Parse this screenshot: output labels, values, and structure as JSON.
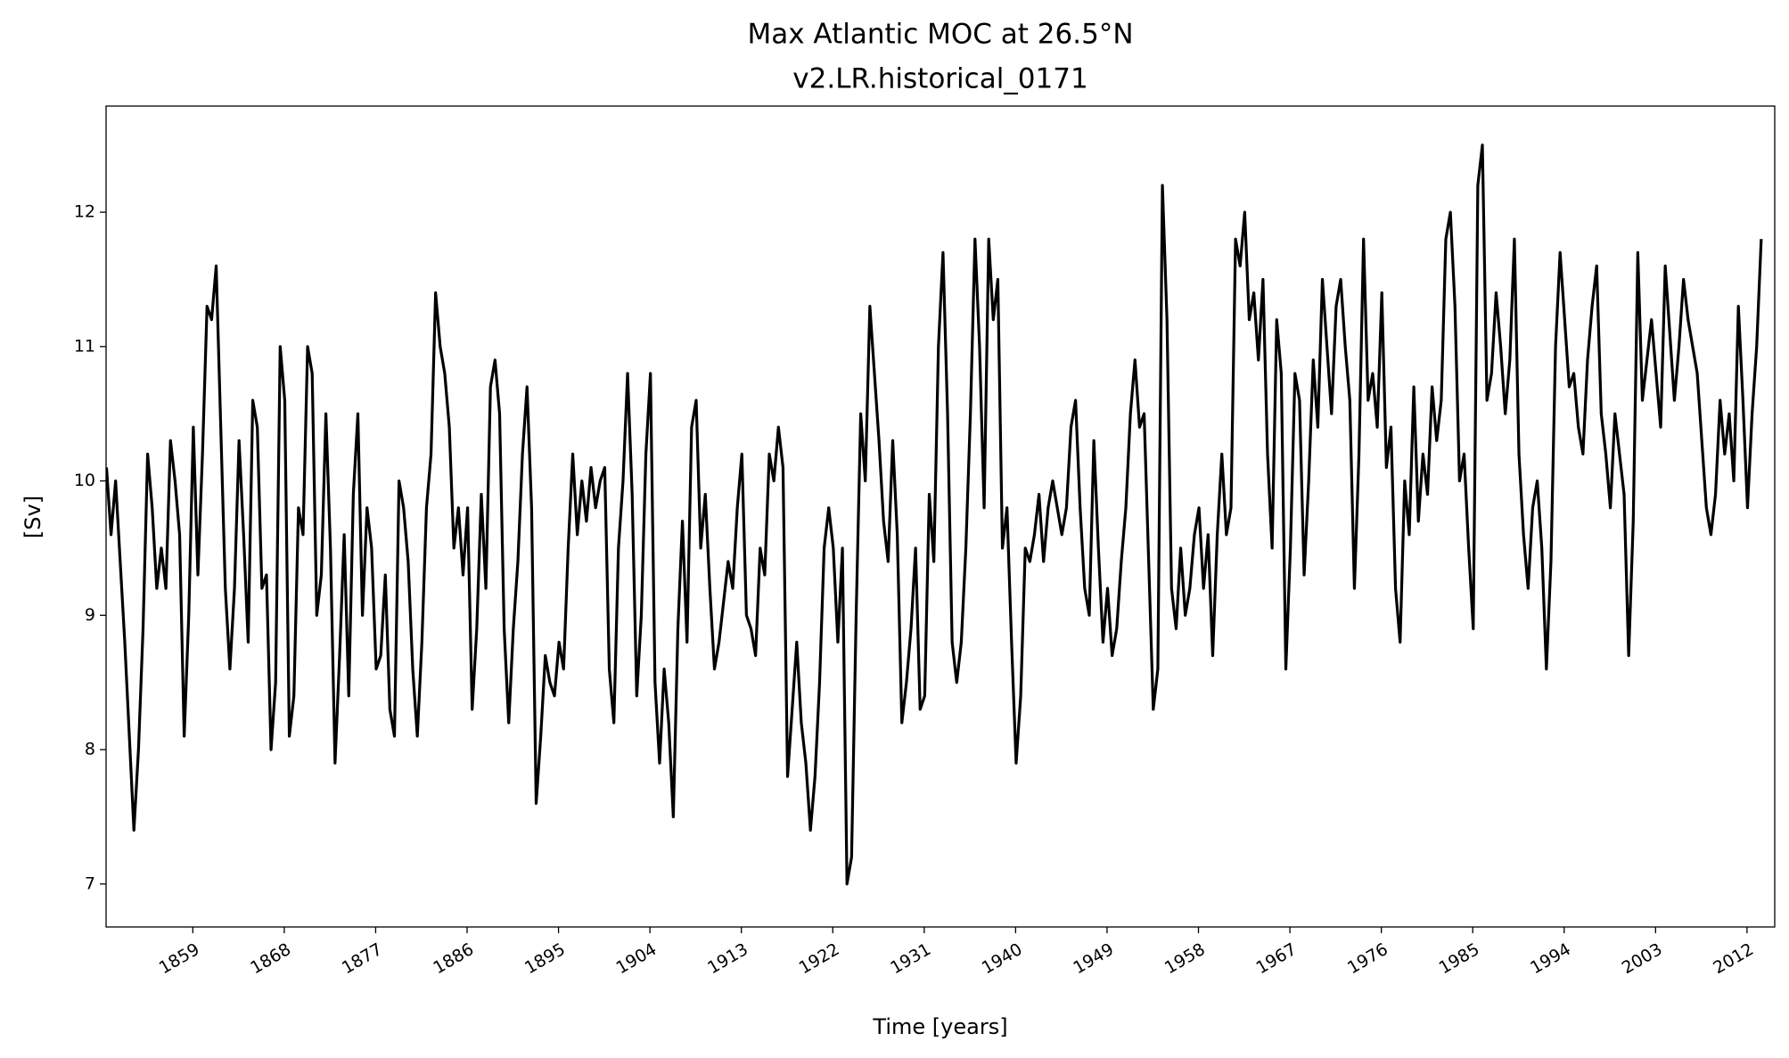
{
  "chart_data": {
    "type": "line",
    "title": "Max Atlantic MOC at 26.5°N",
    "subtitle": "v2.LR.historical_0171",
    "xlabel": "Time [years]",
    "ylabel": "[Sv]",
    "xlim": [
      1850.46,
      2014.73
    ],
    "ylim": [
      6.68,
      12.79
    ],
    "xticks": [
      1859,
      1868,
      1877,
      1886,
      1895,
      1904,
      1913,
      1922,
      1931,
      1940,
      1949,
      1958,
      1967,
      1976,
      1985,
      1994,
      2003,
      2012
    ],
    "yticks": [
      7,
      8,
      9,
      10,
      11,
      12
    ],
    "grid": false,
    "x": [
      1850.5,
      1850.95,
      1851.4,
      1851.85,
      1852.3,
      1852.75,
      1853.2,
      1853.65,
      1854.1,
      1854.55,
      1855,
      1855.45,
      1855.9,
      1856.35,
      1856.8,
      1857.25,
      1857.7,
      1858.15,
      1858.6,
      1859.05,
      1859.5,
      1859.95,
      1860.4,
      1860.85,
      1861.3,
      1861.75,
      1862.2,
      1862.65,
      1863.1,
      1863.55,
      1864,
      1864.45,
      1864.9,
      1865.35,
      1865.8,
      1866.25,
      1866.7,
      1867.15,
      1867.6,
      1868.05,
      1868.5,
      1868.95,
      1869.4,
      1869.85,
      1870.3,
      1870.75,
      1871.2,
      1871.65,
      1872.1,
      1872.55,
      1873,
      1873.45,
      1873.9,
      1874.35,
      1874.8,
      1875.25,
      1875.7,
      1876.15,
      1876.6,
      1877.05,
      1877.5,
      1877.95,
      1878.4,
      1878.85,
      1879.3,
      1879.75,
      1880.2,
      1880.65,
      1881.1,
      1881.55,
      1882,
      1882.45,
      1882.9,
      1883.35,
      1883.8,
      1884.25,
      1884.7,
      1885.15,
      1885.6,
      1886.05,
      1886.5,
      1886.95,
      1887.4,
      1887.85,
      1888.3,
      1888.75,
      1889.2,
      1889.65,
      1890.1,
      1890.55,
      1891,
      1891.45,
      1891.9,
      1892.35,
      1892.8,
      1893.25,
      1893.7,
      1894.15,
      1894.6,
      1895.05,
      1895.5,
      1895.95,
      1896.4,
      1896.85,
      1897.3,
      1897.75,
      1898.2,
      1898.65,
      1899.1,
      1899.55,
      1900,
      1900.45,
      1900.9,
      1901.35,
      1901.8,
      1902.25,
      1902.7,
      1903.15,
      1903.6,
      1904.05,
      1904.5,
      1904.95,
      1905.4,
      1905.85,
      1906.3,
      1906.75,
      1907.2,
      1907.65,
      1908.1,
      1908.55,
      1909,
      1909.45,
      1909.9,
      1910.35,
      1910.8,
      1911.25,
      1911.7,
      1912.15,
      1912.6,
      1913.05,
      1913.5,
      1913.95,
      1914.4,
      1914.85,
      1915.3,
      1915.75,
      1916.2,
      1916.65,
      1917.1,
      1917.55,
      1918,
      1918.45,
      1918.9,
      1919.35,
      1919.8,
      1920.25,
      1920.7,
      1921.15,
      1921.6,
      1922.05,
      1922.5,
      1922.95,
      1923.4,
      1923.85,
      1924.3,
      1924.75,
      1925.2,
      1925.65,
      1926.1,
      1926.55,
      1927,
      1927.45,
      1927.9,
      1928.35,
      1928.8,
      1929.25,
      1929.7,
      1930.15,
      1930.6,
      1931.05,
      1931.5,
      1931.95,
      1932.4,
      1932.85,
      1933.3,
      1933.75,
      1934.2,
      1934.65,
      1935.1,
      1935.55,
      1936,
      1936.45,
      1936.9,
      1937.35,
      1937.8,
      1938.25,
      1938.7,
      1939.15,
      1939.6,
      1940.05,
      1940.5,
      1940.95,
      1941.4,
      1941.85,
      1942.3,
      1942.75,
      1943.2,
      1943.65,
      1944.1,
      1944.55,
      1945,
      1945.45,
      1945.9,
      1946.35,
      1946.8,
      1947.25,
      1947.7,
      1948.15,
      1948.6,
      1949.05,
      1949.5,
      1949.95,
      1950.4,
      1950.85,
      1951.3,
      1951.75,
      1952.2,
      1952.65,
      1953.1,
      1953.55,
      1954,
      1954.45,
      1954.9,
      1955.35,
      1955.8,
      1956.25,
      1956.7,
      1957.15,
      1957.6,
      1958.05,
      1958.5,
      1958.95,
      1959.4,
      1959.85,
      1960.3,
      1960.75,
      1961.2,
      1961.65,
      1962.1,
      1962.55,
      1963,
      1963.45,
      1963.9,
      1964.35,
      1964.8,
      1965.25,
      1965.7,
      1966.15,
      1966.6,
      1967.05,
      1967.5,
      1967.95,
      1968.4,
      1968.85,
      1969.3,
      1969.75,
      1970.2,
      1970.65,
      1971.1,
      1971.55,
      1972,
      1972.45,
      1972.9,
      1973.35,
      1973.8,
      1974.25,
      1974.7,
      1975.15,
      1975.6,
      1976.05,
      1976.5,
      1976.95,
      1977.4,
      1977.85,
      1978.3,
      1978.75,
      1979.2,
      1979.65,
      1980.1,
      1980.55,
      1981,
      1981.45,
      1981.9,
      1982.35,
      1982.8,
      1983.25,
      1983.7,
      1984.15,
      1984.6,
      1985.05,
      1985.5,
      1985.95,
      1986.4,
      1986.85,
      1987.3,
      1987.75,
      1988.2,
      1988.65,
      1989.1,
      1989.55,
      1990,
      1990.45,
      1990.9,
      1991.35,
      1991.8,
      1992.25,
      1992.7,
      1993.15,
      1993.6,
      1994.05,
      1994.5,
      1994.95,
      1995.4,
      1995.85,
      1996.3,
      1996.75,
      1997.2,
      1997.65,
      1998.1,
      1998.55,
      1999,
      1999.45,
      1999.9,
      2000.35,
      2000.8,
      2001.25,
      2001.7,
      2002.15,
      2002.6,
      2003.05,
      2003.5,
      2003.95,
      2004.4,
      2004.85,
      2005.3,
      2005.75,
      2006.2,
      2006.65,
      2007.1,
      2007.55,
      2008,
      2008.45,
      2008.9,
      2009.35,
      2009.8,
      2010.25,
      2010.7,
      2011.15,
      2011.6,
      2012.05,
      2012.5,
      2012.95,
      2013.4
    ],
    "series": [
      {
        "name": "MOC",
        "color": "#000000",
        "values": [
          10.1,
          9.6,
          10.0,
          9.4,
          8.8,
          8.1,
          7.4,
          8.0,
          8.9,
          10.2,
          9.8,
          9.2,
          9.5,
          9.2,
          10.3,
          10.0,
          9.6,
          8.1,
          9.0,
          10.4,
          9.3,
          10.2,
          11.3,
          11.2,
          11.6,
          10.4,
          9.2,
          8.6,
          9.2,
          10.3,
          9.6,
          8.8,
          10.6,
          10.4,
          9.2,
          9.3,
          8.0,
          8.5,
          11.0,
          10.6,
          8.1,
          8.4,
          9.8,
          9.6,
          11.0,
          10.8,
          9.0,
          9.3,
          10.5,
          9.5,
          7.9,
          8.7,
          9.6,
          8.4,
          9.9,
          10.5,
          9.0,
          9.8,
          9.5,
          8.6,
          8.7,
          9.3,
          8.3,
          8.1,
          10.0,
          9.8,
          9.4,
          8.6,
          8.1,
          8.8,
          9.8,
          10.2,
          11.4,
          11.0,
          10.8,
          10.4,
          9.5,
          9.8,
          9.3,
          9.8,
          8.3,
          8.9,
          9.9,
          9.2,
          10.7,
          10.9,
          10.5,
          8.9,
          8.2,
          8.9,
          9.4,
          10.2,
          10.7,
          9.8,
          7.6,
          8.1,
          8.7,
          8.5,
          8.4,
          8.8,
          8.6,
          9.5,
          10.2,
          9.6,
          10.0,
          9.7,
          10.1,
          9.8,
          10.0,
          10.1,
          8.6,
          8.2,
          9.5,
          10.0,
          10.8,
          9.9,
          8.4,
          9.0,
          10.2,
          10.8,
          8.5,
          7.9,
          8.6,
          8.2,
          7.5,
          8.9,
          9.7,
          8.8,
          10.4,
          10.6,
          9.5,
          9.9,
          9.2,
          8.6,
          8.8,
          9.1,
          9.4,
          9.2,
          9.8,
          10.2,
          9.0,
          8.9,
          8.7,
          9.5,
          9.3,
          10.2,
          10.0,
          10.4,
          10.1,
          7.8,
          8.3,
          8.8,
          8.2,
          7.9,
          7.4,
          7.8,
          8.5,
          9.5,
          9.8,
          9.5,
          8.8,
          9.5,
          7.0,
          7.2,
          9.0,
          10.5,
          10.0,
          11.3,
          10.8,
          10.3,
          9.7,
          9.4,
          10.3,
          9.6,
          8.2,
          8.5,
          8.9,
          9.5,
          8.3,
          8.4,
          9.9,
          9.4,
          11.0,
          11.7,
          10.5,
          8.8,
          8.5,
          8.8,
          9.5,
          10.5,
          11.8,
          11.0,
          9.8,
          11.8,
          11.2,
          11.5,
          9.5,
          9.8,
          8.8,
          7.9,
          8.4,
          9.5,
          9.4,
          9.6,
          9.9,
          9.4,
          9.8,
          10.0,
          9.8,
          9.6,
          9.8,
          10.4,
          10.6,
          9.8,
          9.2,
          9.0,
          10.3,
          9.5,
          8.8,
          9.2,
          8.7,
          8.9,
          9.4,
          9.8,
          10.5,
          10.9,
          10.4,
          10.5,
          9.4,
          8.3,
          8.6,
          12.2,
          11.2,
          9.2,
          8.9,
          9.5,
          9.0,
          9.2,
          9.6,
          9.8,
          9.2,
          9.6,
          8.7,
          9.6,
          10.2,
          9.6,
          9.8,
          11.8,
          11.6,
          12.0,
          11.2,
          11.4,
          10.9,
          11.5,
          10.2,
          9.5,
          11.2,
          10.8,
          8.6,
          9.5,
          10.8,
          10.6,
          9.3,
          10.0,
          10.9,
          10.4,
          11.5,
          11.0,
          10.5,
          11.3,
          11.5,
          11.0,
          10.6,
          9.2,
          10.2,
          11.8,
          10.6,
          10.8,
          10.4,
          11.4,
          10.1,
          10.4,
          9.2,
          8.8,
          10.0,
          9.6,
          10.7,
          9.7,
          10.2,
          9.9,
          10.7,
          10.3,
          10.6,
          11.8,
          12.0,
          11.3,
          10.0,
          10.2,
          9.5,
          8.9,
          12.2,
          12.5,
          10.6,
          10.8,
          11.4,
          11.0,
          10.5,
          10.9,
          11.8,
          10.2,
          9.6,
          9.2,
          9.8,
          10.0,
          9.5,
          8.6,
          9.4,
          11.0,
          11.7,
          11.2,
          10.7,
          10.8,
          10.4,
          10.2,
          10.9,
          11.3,
          11.6,
          10.5,
          10.2,
          9.8,
          10.5,
          10.2,
          9.9,
          8.7,
          9.7,
          11.7,
          10.6,
          10.9,
          11.2,
          10.8,
          10.4,
          11.6,
          11.1,
          10.6,
          11.0,
          11.5,
          11.2,
          11.0,
          10.8,
          10.3,
          9.8,
          9.6,
          9.9,
          10.6,
          10.2,
          10.5,
          10.0,
          11.3,
          10.6,
          9.8,
          10.5,
          11.0,
          11.8
        ]
      }
    ]
  }
}
